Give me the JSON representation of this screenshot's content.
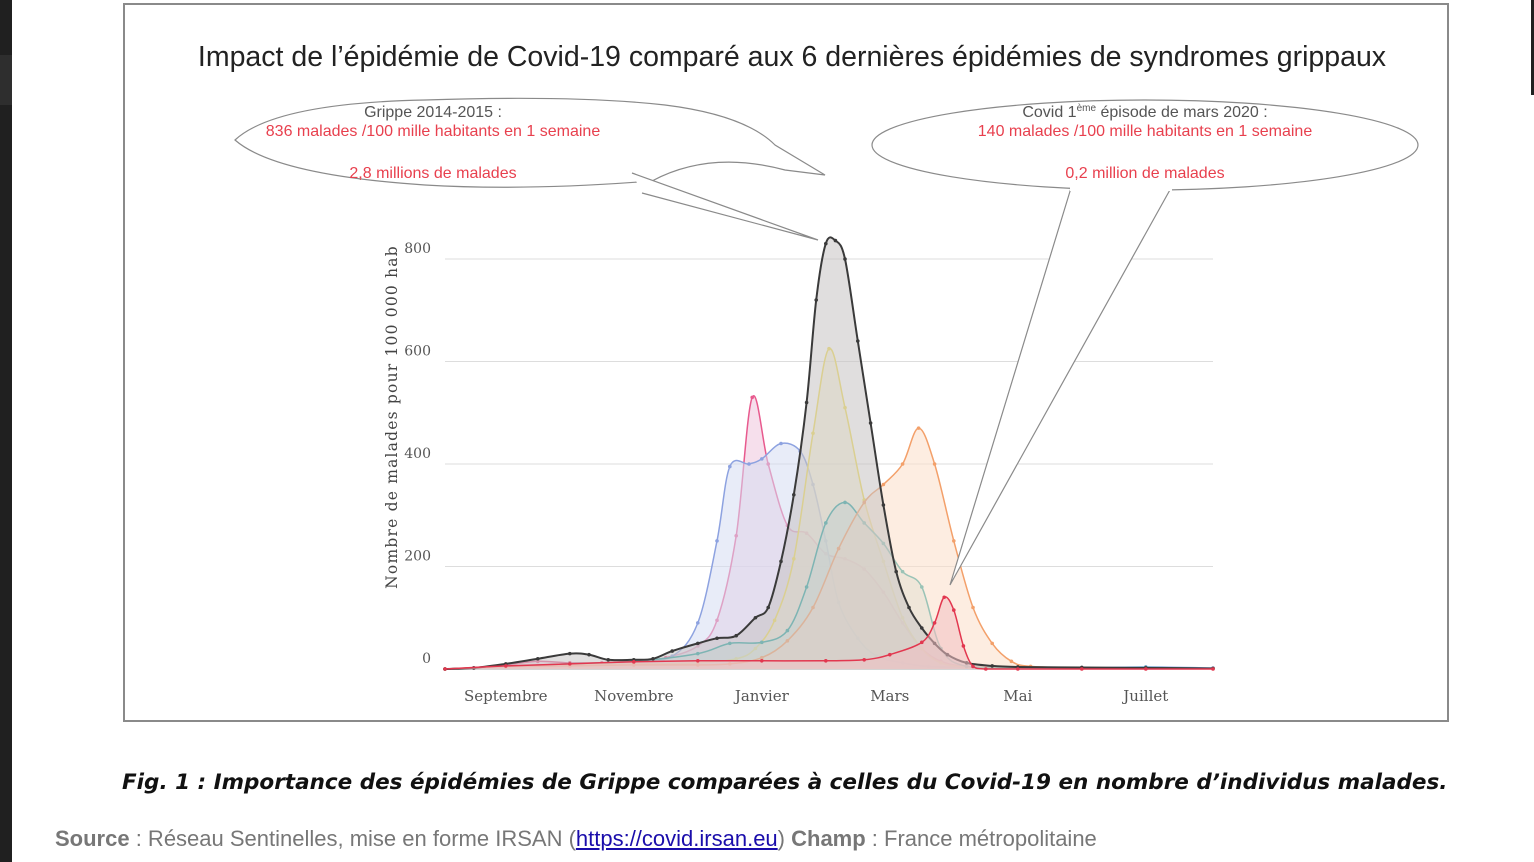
{
  "chart_data": {
    "type": "area",
    "title": "Impact de l’épidémie de Covid-19 comparé aux 6 dernières épidémies de syndromes grippaux",
    "ylabel": "Nombre de malades pour 100 000 hab",
    "xlabel": "",
    "ylim": [
      0,
      800
    ],
    "yticks": [
      0,
      200,
      400,
      600,
      800
    ],
    "x_ticks": [
      "Septembre",
      "Novembre",
      "Janvier",
      "Mars",
      "Mai",
      "Juillet"
    ],
    "x_unit": "mois depuis le 1er août",
    "x_tick_values": [
      1,
      3,
      5,
      7,
      9,
      11
    ],
    "xlim": [
      0.05,
      12.05
    ],
    "grid": true,
    "legend": "none",
    "series": [
      {
        "color": "#e85a8e",
        "fill": "#eec5dc",
        "points": [
          [
            0.05,
            0
          ],
          [
            0.5,
            2
          ],
          [
            1.0,
            8
          ],
          [
            1.5,
            15
          ],
          [
            2.0,
            12
          ],
          [
            2.5,
            12
          ],
          [
            3.0,
            15
          ],
          [
            3.5,
            22
          ],
          [
            4.0,
            45
          ],
          [
            4.3,
            95
          ],
          [
            4.6,
            260
          ],
          [
            4.85,
            530
          ],
          [
            5.1,
            400
          ],
          [
            5.4,
            280
          ],
          [
            5.7,
            265
          ],
          [
            6.0,
            225
          ],
          [
            6.3,
            215
          ],
          [
            6.6,
            195
          ],
          [
            6.9,
            150
          ],
          [
            7.2,
            90
          ],
          [
            7.5,
            40
          ],
          [
            7.8,
            15
          ],
          [
            8.2,
            5
          ],
          [
            9.0,
            3
          ],
          [
            10.0,
            2
          ],
          [
            11.0,
            2
          ],
          [
            12.05,
            1
          ]
        ]
      },
      {
        "color": "#8da2e0",
        "fill": "#d5dcf3",
        "points": [
          [
            0.05,
            0
          ],
          [
            1.0,
            5
          ],
          [
            2.0,
            10
          ],
          [
            3.0,
            14
          ],
          [
            3.6,
            25
          ],
          [
            4.0,
            90
          ],
          [
            4.3,
            250
          ],
          [
            4.5,
            395
          ],
          [
            4.8,
            400
          ],
          [
            5.0,
            410
          ],
          [
            5.3,
            440
          ],
          [
            5.6,
            425
          ],
          [
            5.8,
            360
          ],
          [
            6.0,
            250
          ],
          [
            6.2,
            130
          ],
          [
            6.5,
            60
          ],
          [
            6.8,
            25
          ],
          [
            7.2,
            12
          ],
          [
            7.6,
            5
          ],
          [
            8.2,
            3
          ],
          [
            9.0,
            2
          ],
          [
            10.0,
            2
          ],
          [
            11.0,
            4
          ],
          [
            12.05,
            2
          ]
        ]
      },
      {
        "color": "#f2dd55",
        "fill": "#f5efc8",
        "points": [
          [
            0.05,
            0
          ],
          [
            1.0,
            5
          ],
          [
            2.0,
            8
          ],
          [
            3.0,
            10
          ],
          [
            4.0,
            12
          ],
          [
            4.6,
            20
          ],
          [
            4.9,
            40
          ],
          [
            5.2,
            95
          ],
          [
            5.5,
            215
          ],
          [
            5.8,
            460
          ],
          [
            6.05,
            625
          ],
          [
            6.3,
            510
          ],
          [
            6.6,
            330
          ],
          [
            6.9,
            210
          ],
          [
            7.2,
            100
          ],
          [
            7.5,
            40
          ],
          [
            7.8,
            12
          ],
          [
            8.2,
            4
          ],
          [
            9.0,
            2
          ],
          [
            10.0,
            2
          ],
          [
            11.0,
            2
          ],
          [
            12.05,
            1
          ]
        ]
      },
      {
        "color": "#25a3a0",
        "fill": "#c5e2e0",
        "points": [
          [
            0.05,
            0
          ],
          [
            1.0,
            5
          ],
          [
            2.0,
            10
          ],
          [
            3.0,
            15
          ],
          [
            4.0,
            30
          ],
          [
            4.5,
            50
          ],
          [
            5.0,
            52
          ],
          [
            5.4,
            75
          ],
          [
            5.7,
            160
          ],
          [
            6.0,
            285
          ],
          [
            6.3,
            325
          ],
          [
            6.6,
            285
          ],
          [
            6.9,
            245
          ],
          [
            7.2,
            190
          ],
          [
            7.5,
            160
          ],
          [
            7.8,
            40
          ],
          [
            8.2,
            5
          ],
          [
            9.0,
            2
          ],
          [
            10.0,
            2
          ],
          [
            11.0,
            3
          ],
          [
            12.05,
            1
          ]
        ]
      },
      {
        "color": "#f3a06a",
        "fill": "#fbdfc9",
        "points": [
          [
            0.05,
            0
          ],
          [
            1.0,
            5
          ],
          [
            2.0,
            6
          ],
          [
            3.0,
            8
          ],
          [
            4.0,
            8
          ],
          [
            4.5,
            10
          ],
          [
            5.0,
            22
          ],
          [
            5.4,
            55
          ],
          [
            5.8,
            120
          ],
          [
            6.2,
            235
          ],
          [
            6.6,
            325
          ],
          [
            6.9,
            360
          ],
          [
            7.2,
            400
          ],
          [
            7.45,
            470
          ],
          [
            7.7,
            400
          ],
          [
            8.0,
            250
          ],
          [
            8.3,
            120
          ],
          [
            8.6,
            50
          ],
          [
            8.9,
            15
          ],
          [
            9.2,
            5
          ],
          [
            10.0,
            2
          ],
          [
            11.0,
            2
          ],
          [
            12.05,
            1
          ]
        ]
      },
      {
        "color": "#3a3a3a",
        "fill": "#c7c3c2",
        "points": [
          [
            0.05,
            0
          ],
          [
            0.5,
            2
          ],
          [
            1.0,
            10
          ],
          [
            1.5,
            20
          ],
          [
            2.0,
            30
          ],
          [
            2.3,
            28
          ],
          [
            2.6,
            18
          ],
          [
            3.0,
            18
          ],
          [
            3.3,
            20
          ],
          [
            3.6,
            35
          ],
          [
            4.0,
            50
          ],
          [
            4.3,
            60
          ],
          [
            4.6,
            65
          ],
          [
            4.9,
            100
          ],
          [
            5.1,
            120
          ],
          [
            5.3,
            210
          ],
          [
            5.5,
            340
          ],
          [
            5.7,
            520
          ],
          [
            5.85,
            720
          ],
          [
            6.0,
            830
          ],
          [
            6.15,
            836
          ],
          [
            6.3,
            800
          ],
          [
            6.5,
            640
          ],
          [
            6.7,
            480
          ],
          [
            6.9,
            320
          ],
          [
            7.1,
            190
          ],
          [
            7.3,
            120
          ],
          [
            7.5,
            80
          ],
          [
            7.7,
            50
          ],
          [
            7.9,
            28
          ],
          [
            8.2,
            12
          ],
          [
            8.6,
            6
          ],
          [
            9.0,
            4
          ],
          [
            10.0,
            3
          ],
          [
            11.0,
            2
          ],
          [
            12.05,
            1
          ]
        ]
      },
      {
        "color": "#e2374f",
        "fill": "#f2c0c3",
        "points": [
          [
            0.05,
            0
          ],
          [
            1.0,
            6
          ],
          [
            2.0,
            10
          ],
          [
            3.0,
            14
          ],
          [
            4.0,
            16
          ],
          [
            5.0,
            16
          ],
          [
            6.0,
            16
          ],
          [
            6.6,
            18
          ],
          [
            7.0,
            28
          ],
          [
            7.5,
            52
          ],
          [
            7.7,
            90
          ],
          [
            7.85,
            140
          ],
          [
            8.0,
            115
          ],
          [
            8.15,
            45
          ],
          [
            8.3,
            5
          ],
          [
            8.5,
            0
          ],
          [
            9.0,
            0
          ],
          [
            10.0,
            0
          ],
          [
            11.0,
            0
          ],
          [
            12.05,
            0
          ]
        ]
      }
    ],
    "annotations": [
      {
        "title": "Grippe  2014-2015 :",
        "line1": "836 malades /100 mille habitants en 1 semaine",
        "line2": "2,8 millions de malades"
      },
      {
        "title_main": "Covid 1",
        "title_sup": "ème",
        "title_rest": " épisode de mars 2020 :",
        "line1": "140 malades /100 mille habitants en 1 semaine",
        "line2": "0,2 million de malades"
      }
    ]
  },
  "caption": "Fig. 1 : Importance des épidémies de Grippe comparées à celles du Covid-19 en nombre d’individus malades.",
  "source": {
    "label": "Source",
    "text1": " : Réseau Sentinelles, mise en forme IRSAN (",
    "link": "https://covid.irsan.eu",
    "text2": ") ",
    "champ_label": "Champ",
    "champ_text": " : France métropolitaine"
  },
  "colors": {
    "annotation_text": "#e8404e",
    "annotation_title": "#555555",
    "grid": "#dddddd",
    "axis_text": "#555555"
  }
}
